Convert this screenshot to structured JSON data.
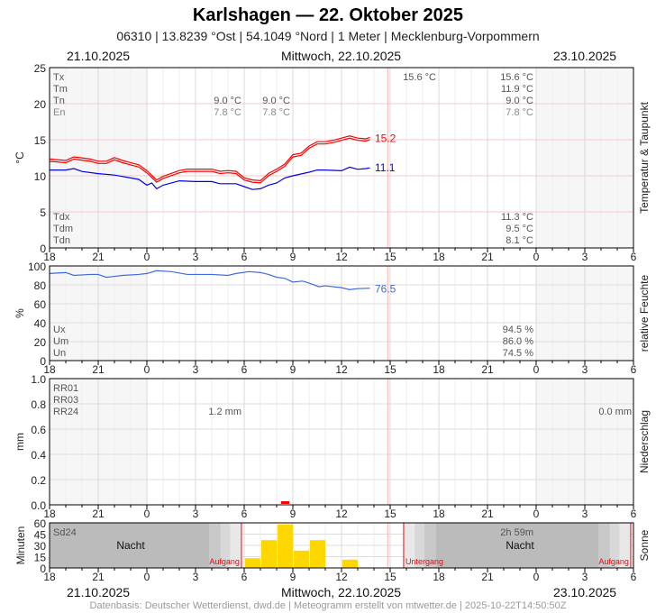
{
  "header": {
    "title": "Karlshagen  —  22. Oktober 2025",
    "subtitle": "06310  |  13.8239 °Ost  |  54.1049 °Nord  |  1 Meter  |  Mecklenburg-Vorpommern",
    "date_left": "21.10.2025",
    "date_center": "Mittwoch, 22.10.2025",
    "date_right": "23.10.2025"
  },
  "footer": "Datenbasis: Deutscher Wetterdienst, dwd.de | Meteogramm erstellt von mtwetter.de | 2025-10-22T14:50:50Z",
  "colors": {
    "temp": "#ff0000",
    "dew": "#0000ee",
    "hum": "#4169e1",
    "sun": "#ffd700",
    "night": "#bbbbbb"
  },
  "chart_data": [
    {
      "type": "line",
      "name": "temperature",
      "side_label": "Temperatur & Taupunkt",
      "ylabel": "°C",
      "ylim": [
        0,
        25
      ],
      "yticks": [
        "0",
        "5",
        "10",
        "15",
        "20",
        "25"
      ],
      "xticks": [
        "18",
        "21",
        "0",
        "3",
        "6",
        "9",
        "12",
        "15",
        "18",
        "21",
        "0",
        "3",
        "6"
      ],
      "x_unit": "hours since 21.10.2025 18:00",
      "xlim": [
        0,
        36
      ],
      "series": [
        {
          "name": "Temperatur",
          "color": "#ff0000",
          "end_label": "15.2",
          "x": [
            0,
            1,
            1.5,
            2.5,
            3,
            3.5,
            4,
            4.5,
            5,
            5.5,
            6,
            6.6,
            7,
            8,
            8.5,
            9,
            10,
            10.5,
            11,
            11.5,
            12,
            12.5,
            13,
            13.5,
            14,
            14.5,
            15,
            15.5,
            16,
            16.5,
            17,
            17.5,
            18,
            18.5,
            19,
            19.5,
            19.75
          ],
          "y": [
            12.2,
            12.0,
            12.5,
            12.2,
            11.9,
            11.9,
            12.4,
            12.0,
            11.7,
            11.4,
            10.6,
            9.3,
            9.8,
            10.6,
            10.8,
            10.8,
            10.8,
            10.5,
            10.6,
            10.5,
            9.6,
            9.3,
            9.2,
            10.2,
            10.8,
            11.5,
            12.8,
            13.0,
            14.0,
            14.6,
            14.6,
            14.8,
            15.1,
            15.4,
            15.1,
            15.0,
            15.2
          ]
        },
        {
          "name": "Taupunkt",
          "color": "#0000ee",
          "end_label": "11.1",
          "x": [
            0,
            1,
            1.5,
            2,
            3,
            4,
            5,
            5.5,
            6,
            6.3,
            6.6,
            7,
            8,
            9,
            10,
            10.5,
            11,
            11.5,
            12,
            12.5,
            13,
            13.5,
            14,
            14.5,
            15,
            16,
            16.5,
            17,
            18,
            18.5,
            19,
            19.5,
            19.75
          ],
          "y": [
            10.8,
            10.8,
            11.0,
            10.6,
            10.3,
            10.1,
            9.7,
            9.5,
            8.7,
            9.0,
            8.2,
            8.7,
            9.3,
            9.2,
            9.2,
            8.9,
            8.9,
            8.9,
            8.5,
            8.1,
            8.2,
            8.7,
            9.0,
            9.7,
            10.0,
            10.5,
            10.8,
            10.8,
            10.7,
            11.2,
            10.9,
            11.0,
            11.1
          ]
        }
      ],
      "stats_left": [
        "Tx",
        "Tm",
        "Tn",
        "En"
      ],
      "stats_left2": [
        "Tdx",
        "Tdm",
        "Tdn"
      ],
      "stats_day1": {
        "Tn": "9.0 °C",
        "En": "7.8 °C"
      },
      "stats_day1b": {
        "Tn": "9.0 °C",
        "En": "7.8 °C"
      },
      "stats_now": {
        "Tx": "15.6 °C"
      },
      "stats_right": {
        "Tx": "15.6 °C",
        "Tm": "11.9 °C",
        "Tn": "9.0 °C",
        "En": "7.8 °C",
        "Tdx": "11.3 °C",
        "Tdm": "9.5 °C",
        "Tdn": "8.1 °C"
      }
    },
    {
      "type": "line",
      "name": "humidity",
      "side_label": "relative Feuchte",
      "ylabel": "%",
      "ylim": [
        0,
        100
      ],
      "yticks": [
        "0",
        "20",
        "40",
        "60",
        "80",
        "100"
      ],
      "series": [
        {
          "name": "relative Feuchte",
          "color": "#4169e1",
          "end_label": "76.5",
          "x": [
            0,
            1,
            1.5,
            2.5,
            3,
            3.5,
            4.5,
            5.5,
            6,
            6.6,
            7.5,
            8.5,
            9,
            10,
            11,
            11.5,
            12.3,
            13,
            13.5,
            14,
            14.5,
            15,
            15.6,
            16,
            16.6,
            17,
            18,
            18.5,
            19,
            19.75
          ],
          "y": [
            92,
            93,
            90,
            91,
            91,
            88,
            90,
            91,
            92,
            95,
            94,
            91,
            91,
            91,
            90,
            92,
            94,
            93,
            91,
            88,
            87,
            83,
            84,
            82,
            78,
            79,
            77,
            75,
            76,
            76.5
          ]
        }
      ],
      "stats_left": [
        "Ux",
        "Um",
        "Un"
      ],
      "stats_right": {
        "Ux": "94.5 %",
        "Um": "86.0 %",
        "Un": "74.5 %"
      }
    },
    {
      "type": "bar",
      "name": "precipitation",
      "side_label": "Niederschlag",
      "ylabel": "mm",
      "ylim": [
        0,
        1
      ],
      "yticks": [
        "0.0",
        "0.2",
        "0.4",
        "0.6",
        "0.8",
        "1.0"
      ],
      "stats_left": [
        "RR01",
        "RR03",
        "RR24"
      ],
      "rr24_day1": "1.2 mm",
      "rr24_day2": "0.0 mm",
      "x": [
        14.5
      ],
      "values": [
        0.0
      ]
    },
    {
      "type": "bar",
      "name": "sunshine",
      "side_label": "Sonne",
      "ylabel": "Minuten",
      "ylim": [
        0,
        60
      ],
      "yticks": [
        "0",
        "15",
        "30",
        "45",
        "60"
      ],
      "x": [
        12,
        13,
        14,
        15,
        16,
        18
      ],
      "values": [
        13,
        37,
        58,
        23,
        37,
        11
      ],
      "stats_left": [
        "Sd24"
      ],
      "sd24": "2h 59m",
      "night_label": "Nacht",
      "sunrise_label": "Aufgang",
      "sunset_label": "Untergang",
      "sunrise1": 11.83,
      "sunset1": 21.83,
      "sunrise2": 35.83
    }
  ]
}
